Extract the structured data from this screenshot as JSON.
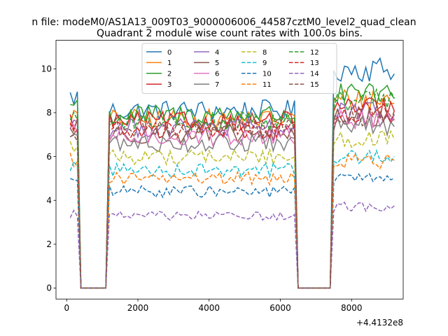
{
  "figure": {
    "suptitle": "n file: modeM0/AS1A13_009T03_9000006006_44587cztM0_level2_quad_clean"
  },
  "chart_data": {
    "type": "line",
    "title": "Quadrant 2 module wise count rates with 100.0s bins.",
    "xlabel": "",
    "ylabel": "",
    "x_offset_label": "+4.4132e8",
    "xlim": [
      -300,
      9450
    ],
    "ylim": [
      -0.5,
      11.3
    ],
    "x_ticks": [
      0,
      2000,
      4000,
      6000,
      8000
    ],
    "y_ticks": [
      0,
      2,
      4,
      6,
      8,
      10
    ],
    "grid": false,
    "legend": {
      "location": "upper center",
      "columns": 4
    },
    "segments": [
      {
        "x_start": 100,
        "x_end": 300,
        "x_step": 100
      },
      {
        "x_start": 400,
        "x_end": 1100,
        "x_step": 100
      },
      {
        "x_start": 1200,
        "x_end": 6400,
        "x_step": 100
      },
      {
        "x_start": 6500,
        "x_end": 7400,
        "x_step": 100
      },
      {
        "x_start": 7500,
        "x_end": 9200,
        "x_step": 100
      }
    ],
    "series": [
      {
        "name": "0",
        "color": "#1f77b4",
        "style": "solid",
        "levels": [
          8.7,
          0,
          8.1,
          0,
          10.0
        ]
      },
      {
        "name": "1",
        "color": "#ff7f0e",
        "style": "solid",
        "levels": [
          7.8,
          0,
          7.7,
          0,
          8.6
        ]
      },
      {
        "name": "2",
        "color": "#2ca02c",
        "style": "solid",
        "levels": [
          8.4,
          0,
          7.9,
          0,
          8.8
        ]
      },
      {
        "name": "3",
        "color": "#d62728",
        "style": "solid",
        "levels": [
          7.6,
          0,
          7.6,
          0,
          8.2
        ]
      },
      {
        "name": "4",
        "color": "#9467bd",
        "style": "solid",
        "levels": [
          7.5,
          0,
          7.3,
          0,
          8.0
        ]
      },
      {
        "name": "5",
        "color": "#8c564b",
        "style": "solid",
        "levels": [
          7.2,
          0,
          7.0,
          0,
          7.8
        ]
      },
      {
        "name": "6",
        "color": "#e377c2",
        "style": "solid",
        "levels": [
          7.1,
          0,
          6.9,
          0,
          7.7
        ]
      },
      {
        "name": "7",
        "color": "#7f7f7f",
        "style": "solid",
        "levels": [
          7.0,
          0,
          6.6,
          0,
          7.4
        ]
      },
      {
        "name": "8",
        "color": "#bcbd22",
        "style": "dashed",
        "levels": [
          6.5,
          0,
          6.0,
          0,
          6.8
        ]
      },
      {
        "name": "9",
        "color": "#17becf",
        "style": "dashed",
        "levels": [
          5.6,
          0,
          5.4,
          0,
          6.0
        ]
      },
      {
        "name": "10",
        "color": "#1f77b4",
        "style": "dashed",
        "levels": [
          5.0,
          0,
          4.4,
          0,
          5.0
        ]
      },
      {
        "name": "11",
        "color": "#ff7f0e",
        "style": "dashed",
        "levels": [
          5.9,
          0,
          5.0,
          0,
          5.8
        ]
      },
      {
        "name": "12",
        "color": "#2ca02c",
        "style": "dashed",
        "levels": [
          7.9,
          0,
          7.6,
          0,
          8.6
        ]
      },
      {
        "name": "13",
        "color": "#d62728",
        "style": "dashed",
        "levels": [
          7.4,
          0,
          7.2,
          0,
          8.0
        ]
      },
      {
        "name": "14",
        "color": "#9467bd",
        "style": "dashed",
        "levels": [
          3.4,
          0,
          3.3,
          0,
          3.7
        ]
      },
      {
        "name": "15",
        "color": "#8c564b",
        "style": "dashed",
        "levels": [
          7.0,
          0,
          7.3,
          0,
          7.8
        ]
      }
    ]
  }
}
